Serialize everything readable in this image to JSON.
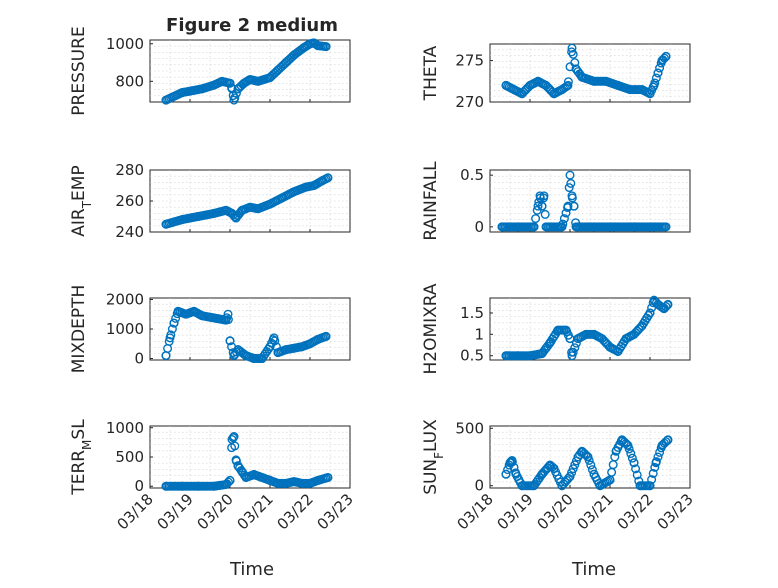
{
  "title": "Figure 2 medium",
  "colors": {
    "marker": "#0072BD",
    "axis": "#262626",
    "grid": "#d0d0d0"
  },
  "xlabel": "Time",
  "chart_data": [
    {
      "type": "scatter",
      "name": "pressure",
      "ylabel": "PRESSURE",
      "ylim": [
        690,
        1020
      ],
      "yticks": [
        800,
        1000
      ],
      "grid": true,
      "xlim": [
        0,
        5
      ],
      "xticks": [
        "03/18",
        "03/19",
        "03/20",
        "03/21",
        "03/22",
        "03/23"
      ],
      "points": [
        [
          0.4,
          700
        ],
        [
          0.8,
          740
        ],
        [
          1.3,
          760
        ],
        [
          1.6,
          780
        ],
        [
          1.8,
          800
        ],
        [
          2.0,
          790
        ],
        [
          2.05,
          760
        ],
        [
          2.1,
          700
        ],
        [
          2.2,
          760
        ],
        [
          2.35,
          790
        ],
        [
          2.5,
          810
        ],
        [
          2.7,
          800
        ],
        [
          3.0,
          820
        ],
        [
          3.2,
          860
        ],
        [
          3.4,
          900
        ],
        [
          3.6,
          940
        ],
        [
          3.85,
          980
        ],
        [
          4.0,
          1000
        ],
        [
          4.1,
          1005
        ],
        [
          4.2,
          990
        ],
        [
          4.4,
          985
        ]
      ]
    },
    {
      "type": "scatter",
      "name": "theta",
      "ylabel": "THETA",
      "ylim": [
        270,
        277
      ],
      "yticks": [
        270,
        275
      ],
      "grid": true,
      "xlim": [
        0,
        5
      ],
      "xticks": [
        "03/18",
        "03/19",
        "03/20",
        "03/21",
        "03/22",
        "03/23"
      ],
      "points": [
        [
          0.4,
          272
        ],
        [
          0.6,
          271.5
        ],
        [
          0.8,
          271
        ],
        [
          1.0,
          272
        ],
        [
          1.2,
          272.5
        ],
        [
          1.4,
          272
        ],
        [
          1.6,
          271
        ],
        [
          1.8,
          271.5
        ],
        [
          1.95,
          272
        ],
        [
          2.05,
          276.5
        ],
        [
          2.15,
          274
        ],
        [
          2.3,
          273
        ],
        [
          2.6,
          272.5
        ],
        [
          2.9,
          272.5
        ],
        [
          3.2,
          272
        ],
        [
          3.5,
          271.5
        ],
        [
          3.8,
          271.5
        ],
        [
          4.0,
          271
        ],
        [
          4.1,
          272
        ],
        [
          4.2,
          273.5
        ],
        [
          4.3,
          275
        ],
        [
          4.4,
          275.5
        ]
      ]
    },
    {
      "type": "scatter",
      "name": "air-temp",
      "ylabel": "AIR_TEMP",
      "ylim": [
        240,
        280
      ],
      "yticks": [
        240,
        260,
        280
      ],
      "grid": true,
      "xlim": [
        0,
        5
      ],
      "xticks": [
        "03/18",
        "03/19",
        "03/20",
        "03/21",
        "03/22",
        "03/23"
      ],
      "points": [
        [
          0.4,
          245
        ],
        [
          0.8,
          248
        ],
        [
          1.2,
          250
        ],
        [
          1.6,
          252
        ],
        [
          1.9,
          254
        ],
        [
          2.05,
          252
        ],
        [
          2.15,
          249
        ],
        [
          2.3,
          254
        ],
        [
          2.5,
          256
        ],
        [
          2.7,
          255
        ],
        [
          3.0,
          258
        ],
        [
          3.3,
          262
        ],
        [
          3.6,
          266
        ],
        [
          3.9,
          269
        ],
        [
          4.1,
          270
        ],
        [
          4.3,
          273
        ],
        [
          4.45,
          275
        ]
      ]
    },
    {
      "type": "scatter",
      "name": "rainfall",
      "ylabel": "RAINFALL",
      "ylim": [
        -0.05,
        0.55
      ],
      "yticks": [
        0,
        0.5
      ],
      "grid": true,
      "xlim": [
        0,
        5
      ],
      "xticks": [
        "03/18",
        "03/19",
        "03/20",
        "03/21",
        "03/22",
        "03/23"
      ],
      "points": [
        [
          0.3,
          0
        ],
        [
          0.7,
          0
        ],
        [
          1.1,
          0
        ],
        [
          1.2,
          0.2
        ],
        [
          1.25,
          0.3
        ],
        [
          1.3,
          0.2
        ],
        [
          1.35,
          0.3
        ],
        [
          1.4,
          0
        ],
        [
          1.8,
          0
        ],
        [
          1.95,
          0.2
        ],
        [
          2.0,
          0.5
        ],
        [
          2.05,
          0.3
        ],
        [
          2.1,
          0.2
        ],
        [
          2.15,
          0
        ],
        [
          2.6,
          0
        ],
        [
          3.1,
          0
        ],
        [
          3.6,
          0
        ],
        [
          4.1,
          0
        ],
        [
          4.4,
          0
        ]
      ]
    },
    {
      "type": "scatter",
      "name": "mixdepth",
      "ylabel": "MIXDEPTH",
      "ylim": [
        -50,
        2050
      ],
      "yticks": [
        0,
        1000,
        2000
      ],
      "grid": true,
      "xlim": [
        0,
        5
      ],
      "xticks": [
        "03/18",
        "03/19",
        "03/20",
        "03/21",
        "03/22",
        "03/23"
      ],
      "points": [
        [
          0.4,
          100
        ],
        [
          0.5,
          700
        ],
        [
          0.6,
          1200
        ],
        [
          0.7,
          1600
        ],
        [
          0.9,
          1500
        ],
        [
          1.1,
          1600
        ],
        [
          1.3,
          1450
        ],
        [
          1.5,
          1400
        ],
        [
          1.7,
          1350
        ],
        [
          1.9,
          1300
        ],
        [
          1.95,
          1500
        ],
        [
          2.0,
          600
        ],
        [
          2.1,
          100
        ],
        [
          2.2,
          300
        ],
        [
          2.4,
          100
        ],
        [
          2.6,
          0
        ],
        [
          2.8,
          0
        ],
        [
          3.0,
          400
        ],
        [
          3.1,
          700
        ],
        [
          3.2,
          200
        ],
        [
          3.4,
          300
        ],
        [
          3.6,
          350
        ],
        [
          3.8,
          400
        ],
        [
          4.0,
          500
        ],
        [
          4.2,
          650
        ],
        [
          4.4,
          750
        ]
      ]
    },
    {
      "type": "scatter",
      "name": "h2omixra",
      "ylabel": "H2OMIXRA",
      "ylim": [
        0.4,
        1.85
      ],
      "yticks": [
        0.5,
        1,
        1.5
      ],
      "grid": true,
      "xlim": [
        0,
        5
      ],
      "xticks": [
        "03/18",
        "03/19",
        "03/20",
        "03/21",
        "03/22",
        "03/23"
      ],
      "points": [
        [
          0.4,
          0.5
        ],
        [
          0.7,
          0.5
        ],
        [
          1.0,
          0.5
        ],
        [
          1.3,
          0.55
        ],
        [
          1.5,
          0.8
        ],
        [
          1.7,
          1.1
        ],
        [
          1.9,
          1.1
        ],
        [
          2.0,
          0.9
        ],
        [
          2.05,
          0.5
        ],
        [
          2.2,
          0.9
        ],
        [
          2.4,
          1.0
        ],
        [
          2.6,
          1.0
        ],
        [
          2.8,
          0.9
        ],
        [
          3.0,
          0.7
        ],
        [
          3.2,
          0.6
        ],
        [
          3.4,
          0.9
        ],
        [
          3.6,
          1.0
        ],
        [
          3.8,
          1.2
        ],
        [
          4.0,
          1.5
        ],
        [
          4.1,
          1.8
        ],
        [
          4.2,
          1.7
        ],
        [
          4.35,
          1.6
        ],
        [
          4.45,
          1.7
        ]
      ]
    },
    {
      "type": "scatter",
      "name": "terr-msl",
      "ylabel": "TERR_MSL",
      "ylim": [
        -30,
        1030
      ],
      "yticks": [
        0,
        500,
        1000
      ],
      "grid": true,
      "xlim": [
        0,
        5
      ],
      "xticks": [
        "03/18",
        "03/19",
        "03/20",
        "03/21",
        "03/22",
        "03/23"
      ],
      "points": [
        [
          0.4,
          0
        ],
        [
          0.8,
          0
        ],
        [
          1.2,
          0
        ],
        [
          1.6,
          0
        ],
        [
          1.9,
          30
        ],
        [
          2.0,
          100
        ],
        [
          2.05,
          800
        ],
        [
          2.1,
          850
        ],
        [
          2.15,
          450
        ],
        [
          2.2,
          350
        ],
        [
          2.3,
          250
        ],
        [
          2.4,
          150
        ],
        [
          2.6,
          200
        ],
        [
          2.8,
          150
        ],
        [
          3.0,
          100
        ],
        [
          3.2,
          50
        ],
        [
          3.4,
          50
        ],
        [
          3.6,
          80
        ],
        [
          3.8,
          50
        ],
        [
          4.0,
          50
        ],
        [
          4.2,
          100
        ],
        [
          4.45,
          150
        ]
      ]
    },
    {
      "type": "scatter",
      "name": "sun-flux",
      "ylabel": "SUN_FLUX",
      "ylim": [
        -20,
        520
      ],
      "yticks": [
        0,
        500
      ],
      "grid": true,
      "xlim": [
        0,
        5
      ],
      "xticks": [
        "03/18",
        "03/19",
        "03/20",
        "03/21",
        "03/22",
        "03/23"
      ],
      "points": [
        [
          0.4,
          100
        ],
        [
          0.5,
          200
        ],
        [
          0.55,
          220
        ],
        [
          0.65,
          100
        ],
        [
          0.8,
          0
        ],
        [
          1.1,
          0
        ],
        [
          1.3,
          100
        ],
        [
          1.5,
          180
        ],
        [
          1.6,
          150
        ],
        [
          1.8,
          0
        ],
        [
          2.0,
          80
        ],
        [
          2.2,
          250
        ],
        [
          2.3,
          300
        ],
        [
          2.45,
          250
        ],
        [
          2.6,
          100
        ],
        [
          2.75,
          0
        ],
        [
          3.0,
          50
        ],
        [
          3.15,
          300
        ],
        [
          3.3,
          400
        ],
        [
          3.45,
          350
        ],
        [
          3.6,
          200
        ],
        [
          3.75,
          0
        ],
        [
          4.0,
          0
        ],
        [
          4.15,
          200
        ],
        [
          4.3,
          350
        ],
        [
          4.45,
          400
        ]
      ]
    }
  ]
}
